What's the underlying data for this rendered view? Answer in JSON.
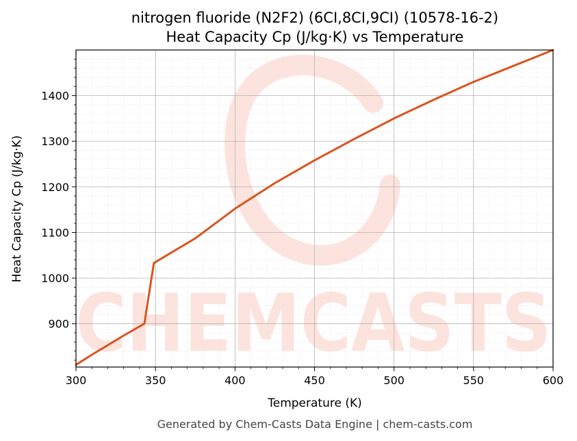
{
  "colors": {
    "line": "#d9541e",
    "watermark": "#fde0da",
    "grid_major": "#b0b0b0",
    "grid_minor": "#e4e4e4"
  },
  "watermark": {
    "text": "CHEMCASTS"
  },
  "footer": {
    "text": "Generated by Chem-Casts Data Engine | chem-casts.com"
  },
  "chart_data": {
    "type": "line",
    "title": "nitrogen fluoride (N2F2) (6CI,8CI,9CI) (10578-16-2)",
    "subtitle": "Heat Capacity Cp (J/kg·K) vs Temperature",
    "xlabel": "Temperature (K)",
    "ylabel": "Heat Capacity Cp (J/kg·K)",
    "xlim": [
      300,
      600
    ],
    "ylim": [
      805,
      1500
    ],
    "xticks": [
      300,
      350,
      400,
      450,
      500,
      550,
      600
    ],
    "yticks": [
      900,
      1000,
      1100,
      1200,
      1300,
      1400
    ],
    "grid": true,
    "series": [
      {
        "x": [
          300,
          310,
          320,
          330,
          343,
          349,
          360,
          375,
          400,
          425,
          450,
          475,
          500,
          525,
          550,
          575,
          600
        ],
        "y": [
          810,
          832,
          853,
          874,
          900,
          1033,
          1056,
          1087,
          1152,
          1208,
          1258,
          1305,
          1350,
          1391,
          1430,
          1465,
          1500
        ]
      }
    ]
  }
}
